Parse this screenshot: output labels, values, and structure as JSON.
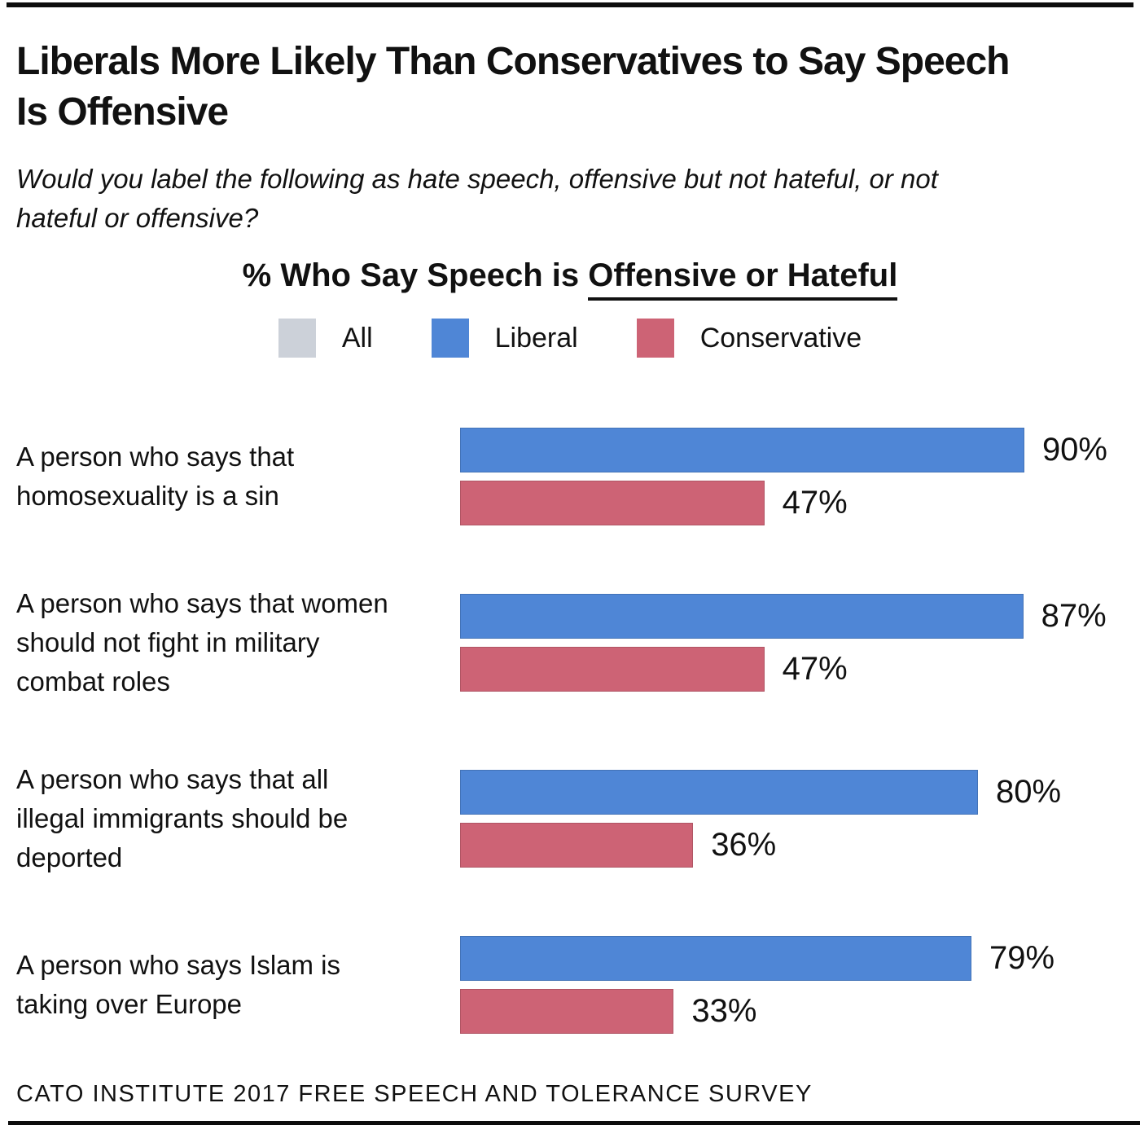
{
  "page": {
    "title_lines": [
      "Liberals More Likely Than Conservatives to Say Speech",
      "Is Offensive"
    ],
    "subtitle_lines": [
      "Would you label the following as hate speech, offensive but not hateful, or not",
      "hateful or offensive?"
    ],
    "footer": "CATO INSTITUTE 2017 FREE SPEECH AND TOLERANCE SURVEY"
  },
  "chart_data": {
    "type": "bar",
    "orientation": "horizontal",
    "title_prefix": "% Who Say Speech is ",
    "title_underlined": "Offensive or Hateful",
    "unit": "%",
    "xlim": [
      0,
      100
    ],
    "grid": false,
    "legend_position": "top-center",
    "legend": [
      {
        "label": "All",
        "color": "#ccd1d9"
      },
      {
        "label": "Liberal",
        "color": "#4f86d6"
      },
      {
        "label": "Conservative",
        "color": "#cd6375"
      }
    ],
    "categories": [
      "A person who says that homosexuality is a sin",
      "A person who says that women should not fight in military combat roles",
      "A person who says that all illegal immigrants should be deported",
      "A person who says Islam is taking over Europe"
    ],
    "series": [
      {
        "name": "Liberal",
        "values": [
          90,
          87,
          80,
          79
        ]
      },
      {
        "name": "Conservative",
        "values": [
          47,
          47,
          36,
          33
        ]
      }
    ],
    "items": [
      {
        "label_lines": [
          "A person who says that",
          "homosexuality is a sin"
        ],
        "liberal": 90,
        "conservative": 47
      },
      {
        "label_lines": [
          "A person who says that women",
          "should not fight in military",
          "combat roles"
        ],
        "liberal": 87,
        "conservative": 47
      },
      {
        "label_lines": [
          "A person who says that all",
          "illegal immigrants should be",
          "deported"
        ],
        "liberal": 80,
        "conservative": 36
      },
      {
        "label_lines": [
          "A person who says Islam is",
          "taking over Europe"
        ],
        "liberal": 79,
        "conservative": 33
      }
    ]
  },
  "colors": {
    "rule": "#0d0d0d",
    "text": "#111111"
  }
}
